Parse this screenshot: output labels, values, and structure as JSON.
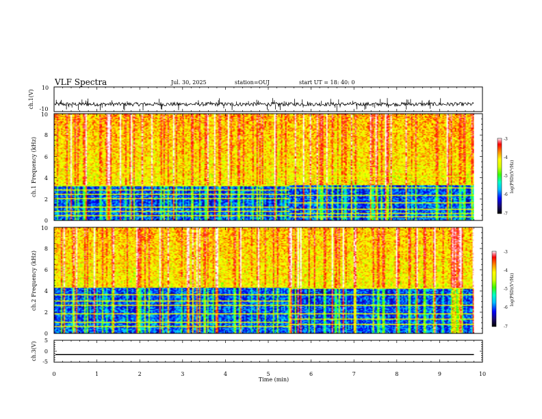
{
  "header": {
    "title": "VLF Spectra",
    "date": "Jul. 30, 2025",
    "station": "station=OUJ",
    "start": "start UT =  18: 40: 0"
  },
  "colors": {
    "spectrogram_scale": [
      "#000000",
      "#1a0a6e",
      "#0000ff",
      "#00bfff",
      "#00ffc8",
      "#3cff00",
      "#d8ff00",
      "#ffff00",
      "#ff8c00",
      "#ff0000",
      "#ff8fa0",
      "#ffffff"
    ],
    "waveform": "#000000"
  },
  "colorbar": {
    "label": "log(PSD)(V²/Hz)",
    "ticks": [
      "-3",
      "-4",
      "-5",
      "-6",
      "-7"
    ]
  },
  "chart_data": [
    {
      "type": "line",
      "name": "ch1-waveform",
      "ylabel": "ch.1(V)",
      "ylim": [
        -10,
        10
      ],
      "yticks": [
        "10",
        "-10"
      ],
      "xlim": [
        0,
        10
      ],
      "data_end_min": 9.8,
      "baseline": -4,
      "noise_amplitude": 1.5,
      "spike_amplitude": 4
    },
    {
      "type": "heatmap",
      "name": "ch1-spectrogram",
      "ylabel": "ch.1 Frequency (kHz)",
      "ylim": [
        0,
        10
      ],
      "yticks": [
        "0",
        "2",
        "4",
        "6",
        "8",
        "10"
      ],
      "xlim": [
        0,
        10
      ],
      "data_end_min": 9.8,
      "value_unit": "log(PSD)(V²/Hz)",
      "value_range": [
        -7,
        -3
      ],
      "low_band_khz": [
        0,
        3.3
      ],
      "line_change_min": 5.5,
      "lines_before_khz": [
        0.4,
        0.8,
        1.2,
        2.0,
        2.4,
        2.8,
        3.2
      ],
      "lines_after_khz": [
        0.3,
        0.6,
        1.0,
        1.6,
        2.3,
        3.0,
        4.1
      ]
    },
    {
      "type": "heatmap",
      "name": "ch2-spectrogram",
      "ylabel": "ch.2 Frequency (kHz)",
      "ylim": [
        0,
        10
      ],
      "yticks": [
        "0",
        "2",
        "4",
        "6",
        "8",
        "10"
      ],
      "xlim": [
        0,
        10
      ],
      "data_end_min": 9.8,
      "value_unit": "log(PSD)(V²/Hz)",
      "value_range": [
        -7,
        -3
      ],
      "low_band_khz": [
        0,
        4.3
      ],
      "line_change_min": 5.5,
      "lines_before_khz": [
        0.6,
        1.0,
        1.8,
        2.6,
        3.0,
        3.6
      ],
      "lines_after_khz": [
        0.8,
        1.3,
        1.8,
        2.6,
        3.6,
        4.2
      ]
    },
    {
      "type": "line",
      "name": "ch3-waveform",
      "ylabel": "ch.3(V)",
      "ylim": [
        -5,
        5
      ],
      "yticks": [
        "5",
        "0",
        "-5"
      ],
      "xlim": [
        0,
        10
      ],
      "data_end_min": 9.8,
      "constant_value": -1.5
    }
  ],
  "xaxis": {
    "label": "Time (min)",
    "ticks": [
      "0",
      "1",
      "2",
      "3",
      "4",
      "5",
      "6",
      "7",
      "8",
      "9",
      "10"
    ]
  }
}
